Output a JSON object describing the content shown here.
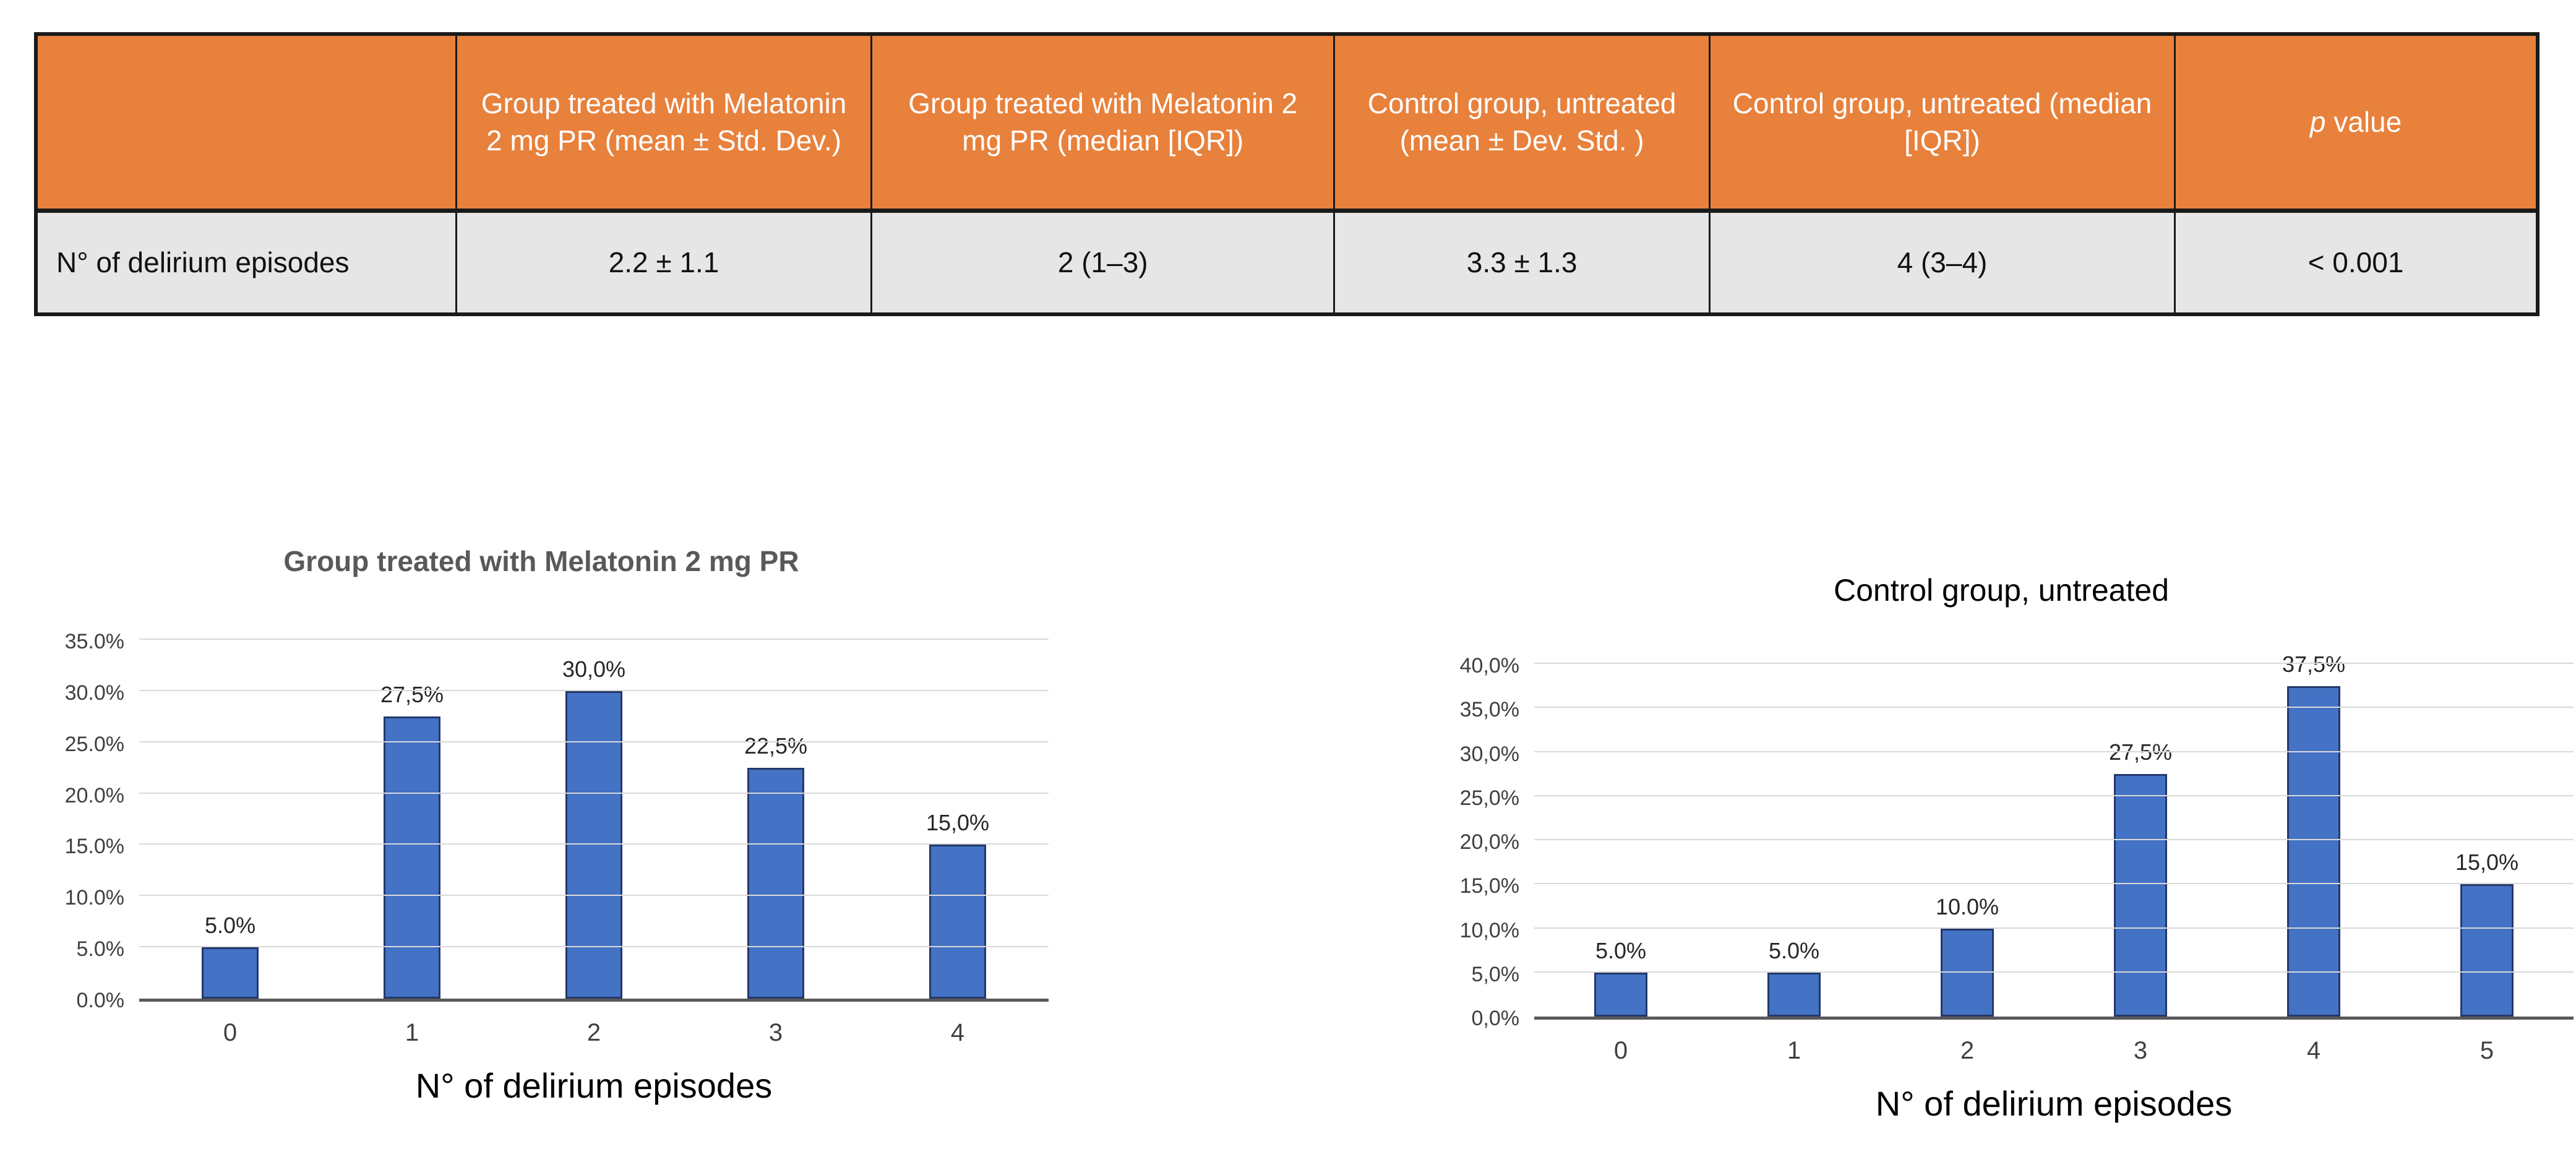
{
  "table": {
    "style": {
      "header_bg": "#E8813C",
      "header_text": "#FFFFFF",
      "row_bg": "#E7E6E6",
      "border": "#1A1A1A"
    },
    "columns": [
      "",
      "Group treated with Melatonin 2 mg PR (mean ± Std. Dev.)",
      "Group treated with Melatonin 2 mg PR (median [IQR])",
      "Control group, untreated (mean ± Dev. Std. )",
      "Control group, untreated (median [IQR])"
    ],
    "p_value_header": {
      "italic": "p",
      "rest": " value"
    },
    "rows": [
      {
        "label": "N° of delirium episodes",
        "values": [
          "2.2 ± 1.1",
          "2 (1–3)",
          "3.3 ± 1.3",
          "4 (3–4)",
          "< 0.001"
        ]
      }
    ]
  },
  "chart_data": [
    {
      "type": "bar",
      "title": "Group treated with Melatonin 2 mg PR",
      "categories": [
        "0",
        "1",
        "2",
        "3",
        "4"
      ],
      "values": [
        5.0,
        27.5,
        30.0,
        22.5,
        15.0
      ],
      "value_labels": [
        "5.0%",
        "27,5%",
        "30,0%",
        "22,5%",
        "15,0%"
      ],
      "xlabel": "N° of delirium episodes",
      "ylabel": "",
      "ylim": [
        0,
        35
      ],
      "ytick_step": 5,
      "ytick_labels": [
        "35.0%",
        "30.0%",
        "25.0%",
        "20.0%",
        "15.0%",
        "10.0%",
        "5.0%",
        "0.0%"
      ],
      "grid": true,
      "legend": false,
      "bar_color": "#4472C4",
      "bar_border": "#24386B"
    },
    {
      "type": "bar",
      "title": "Control group, untreated",
      "categories": [
        "0",
        "1",
        "2",
        "3",
        "4",
        "5"
      ],
      "values": [
        5.0,
        5.0,
        10.0,
        27.5,
        37.5,
        15.0
      ],
      "value_labels": [
        "5.0%",
        "5.0%",
        "10.0%",
        "27,5%",
        "37,5%",
        "15,0%"
      ],
      "xlabel": "N° of delirium episodes",
      "ylabel": "",
      "ylim": [
        0,
        40
      ],
      "ytick_step": 5,
      "ytick_labels": [
        "40,0%",
        "35,0%",
        "30,0%",
        "25,0%",
        "20,0%",
        "15,0%",
        "10,0%",
        "5,0%",
        "0,0%"
      ],
      "grid": true,
      "legend": false,
      "bar_color": "#4472C4",
      "bar_border": "#24386B"
    }
  ]
}
